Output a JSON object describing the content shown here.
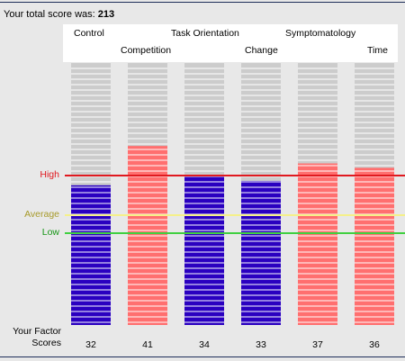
{
  "total": {
    "label": "Your total score was:",
    "value": "213"
  },
  "factor_label_line1": "Your Factor",
  "factor_label_line2": "Scores",
  "chart_data": {
    "type": "bar",
    "categories": [
      "Control",
      "Competition",
      "Task Orientation",
      "Change",
      "Symptomatology",
      "Time"
    ],
    "values": [
      32,
      41,
      34,
      33,
      37,
      36
    ],
    "max_value": 60,
    "bar_colors": [
      "#2a00c0",
      "#ff6f6f",
      "#2a00c0",
      "#2a00c0",
      "#ff6f6f",
      "#ff6f6f"
    ],
    "empty_color": "#cccccc",
    "reference_lines": [
      {
        "label": "High",
        "value": 34.3,
        "color": "#e0191f"
      },
      {
        "label": "Average",
        "value": 25.2,
        "color": "#f5f08a",
        "text_color": "#a79a2a"
      },
      {
        "label": "Low",
        "value": 21.1,
        "color": "#40d040",
        "text_color": "#159515"
      }
    ]
  }
}
